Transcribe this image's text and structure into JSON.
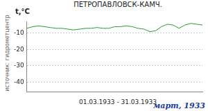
{
  "chart_data": {
    "type": "line",
    "title": "ПЕТРОПАВЛОВСК-КАМЧ.",
    "y_label": "t,°C",
    "x_label": "01.03.1933 - 31.03.1933",
    "source": "источник: гидрометцентр",
    "subtitle": "март, 1933",
    "categories": [
      null,
      null,
      null,
      null,
      null,
      null,
      null,
      null,
      null,
      null,
      null,
      null,
      null,
      null,
      null,
      null,
      null,
      null,
      null,
      null,
      null,
      null,
      null,
      null,
      null,
      null,
      null,
      null,
      null,
      null,
      null
    ],
    "values": [
      -7,
      -6,
      -5.5,
      -6,
      -6.5,
      -7,
      -7,
      -7.5,
      -8,
      -7.5,
      -7,
      -7,
      -6.5,
      -7,
      -7,
      -6,
      -6,
      -5.5,
      -6,
      -7,
      -7.5,
      -9,
      -8.5,
      -6,
      -4.5,
      -5,
      -7,
      -5,
      -4,
      -4.5,
      -5
    ],
    "color": "#2e9a2e",
    "ylim": [
      -46,
      -3
    ],
    "yticks": [
      -40,
      -30,
      -20,
      -10
    ],
    "grid": "y",
    "tick_labels": "y"
  }
}
